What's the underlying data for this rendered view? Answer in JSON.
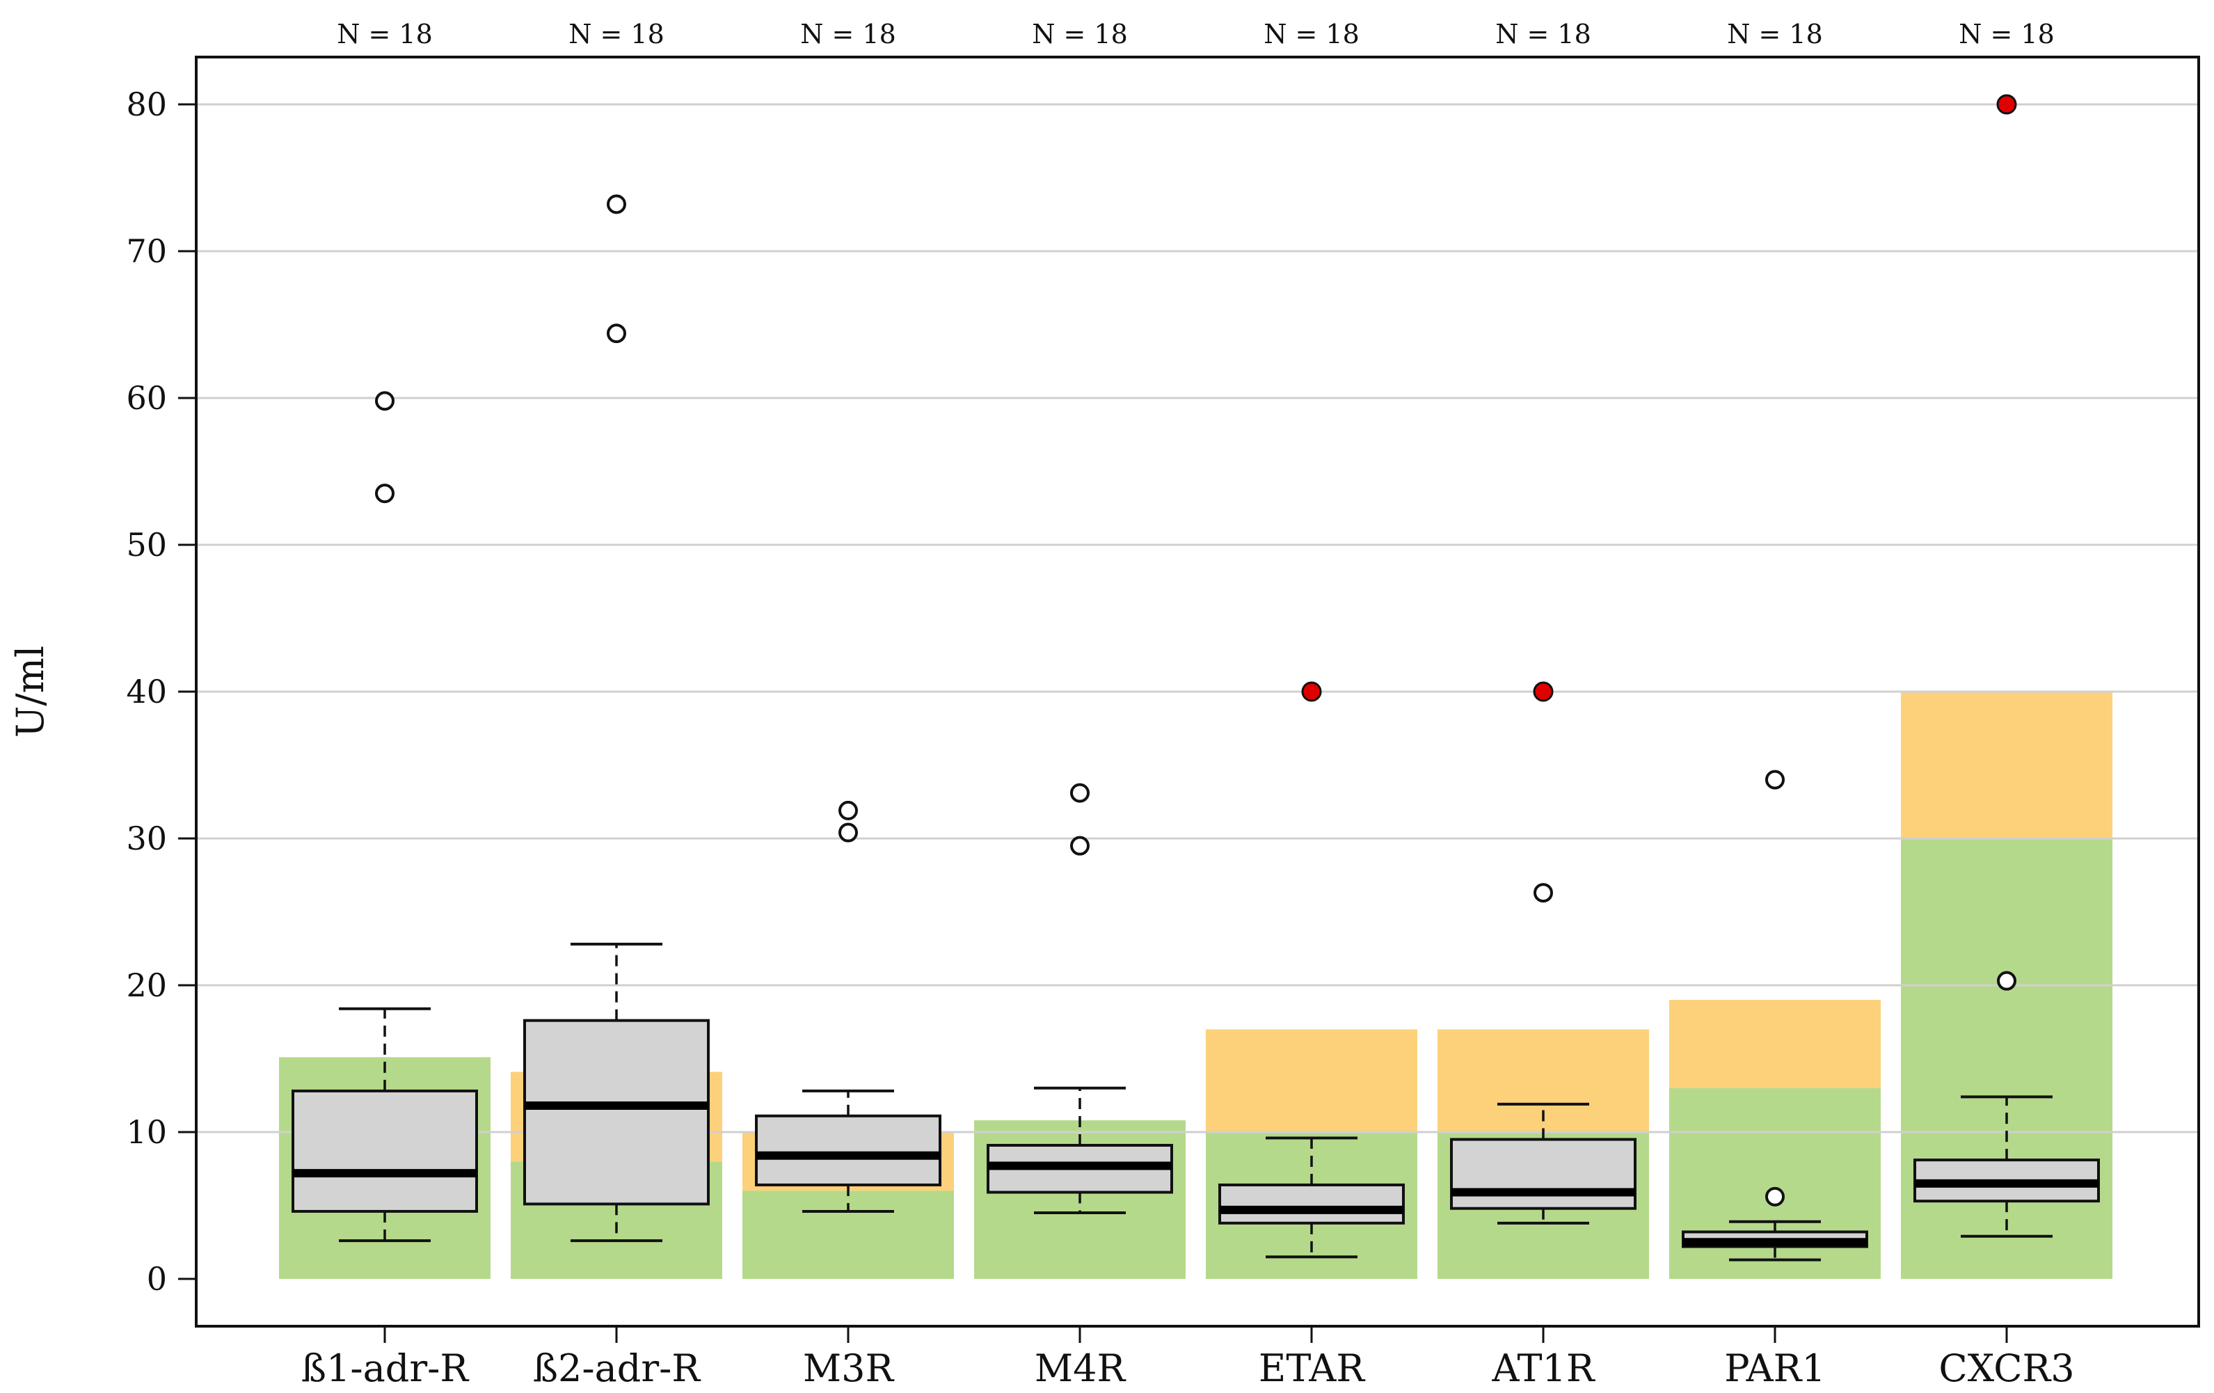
{
  "chart_data": {
    "type": "boxplot",
    "title": "",
    "xlabel": "",
    "ylabel": "U/ml",
    "ylim": [
      0,
      80
    ],
    "yticks": [
      0,
      10,
      20,
      30,
      40,
      50,
      60,
      70,
      80
    ],
    "grid": "horizontal",
    "categories": [
      "ß1-adr-R",
      "ß2-adr-R",
      "M3R",
      "M4R",
      "ETAR",
      "AT1R",
      "PAR1",
      "CXCR3"
    ],
    "n_labels": [
      "N = 18",
      "N = 18",
      "N = 18",
      "N = 18",
      "N = 18",
      "N = 18",
      "N = 18",
      "N = 18"
    ],
    "boxes": [
      {
        "whisker_low": 2.6,
        "q1": 4.6,
        "median": 7.2,
        "q3": 12.8,
        "whisker_high": 18.4,
        "outliers": [
          53.5,
          59.8
        ],
        "highlight_outliers": []
      },
      {
        "whisker_low": 2.6,
        "q1": 5.1,
        "median": 11.8,
        "q3": 17.6,
        "whisker_high": 22.8,
        "outliers": [
          64.4,
          73.2
        ],
        "highlight_outliers": []
      },
      {
        "whisker_low": 4.6,
        "q1": 6.4,
        "median": 8.4,
        "q3": 11.1,
        "whisker_high": 12.8,
        "outliers": [
          30.4,
          31.9
        ],
        "highlight_outliers": []
      },
      {
        "whisker_low": 4.5,
        "q1": 5.9,
        "median": 7.7,
        "q3": 9.1,
        "whisker_high": 13.0,
        "outliers": [
          29.5,
          33.1
        ],
        "highlight_outliers": []
      },
      {
        "whisker_low": 1.5,
        "q1": 3.8,
        "median": 4.7,
        "q3": 6.4,
        "whisker_high": 9.6,
        "outliers": [],
        "highlight_outliers": [
          40.0
        ]
      },
      {
        "whisker_low": 3.8,
        "q1": 4.8,
        "median": 5.9,
        "q3": 9.5,
        "whisker_high": 11.9,
        "outliers": [
          26.3
        ],
        "highlight_outliers": [
          40.0
        ]
      },
      {
        "whisker_low": 1.3,
        "q1": 2.2,
        "median": 2.5,
        "q3": 3.2,
        "whisker_high": 3.9,
        "outliers": [
          5.6,
          34.0
        ],
        "highlight_outliers": []
      },
      {
        "whisker_low": 2.9,
        "q1": 5.3,
        "median": 6.5,
        "q3": 8.1,
        "whisker_high": 12.4,
        "outliers": [
          20.3
        ],
        "highlight_outliers": [
          80.0
        ]
      }
    ],
    "reference_ranges": [
      {
        "green_max": 15.1,
        "orange_max": 15.1
      },
      {
        "green_max": 8.0,
        "orange_max": 14.1
      },
      {
        "green_max": 6.0,
        "orange_max": 10.0
      },
      {
        "green_max": 10.8,
        "orange_max": 10.8
      },
      {
        "green_max": 10.0,
        "orange_max": 17.0
      },
      {
        "green_max": 10.0,
        "orange_max": 17.0
      },
      {
        "green_max": 13.0,
        "orange_max": 19.0
      },
      {
        "green_max": 30.0,
        "orange_max": 40.0
      }
    ],
    "colors": {
      "green_band": "#b5d98b",
      "orange_band": "#fdd07a",
      "box_fill": "#d3d3d3",
      "highlight_outlier": "#e00000",
      "grid": "#d0d0d0"
    }
  }
}
